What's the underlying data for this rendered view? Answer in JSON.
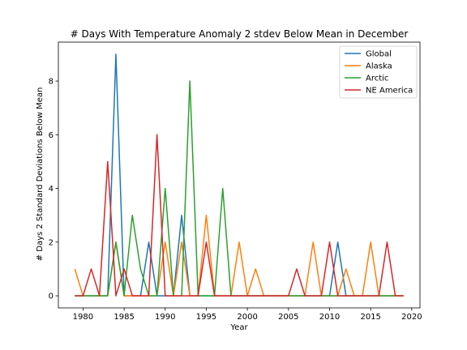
{
  "chart_data": {
    "type": "line",
    "title": "# Days With Temperature Anomaly 2 stdev Below Mean in December",
    "xlabel": "Year",
    "ylabel": "# Days 2 Standard Deviations Below Mean",
    "xlim": [
      1977,
      2021
    ],
    "ylim": [
      -0.45,
      9.45
    ],
    "xticks": [
      1980,
      1985,
      1990,
      1995,
      2000,
      2005,
      2010,
      2015,
      2020
    ],
    "yticks": [
      0,
      2,
      4,
      6,
      8
    ],
    "grid": false,
    "legend_position": "top-right",
    "x": [
      1979,
      1980,
      1981,
      1982,
      1983,
      1984,
      1985,
      1986,
      1987,
      1988,
      1989,
      1990,
      1991,
      1992,
      1993,
      1994,
      1995,
      1996,
      1997,
      1998,
      1999,
      2000,
      2001,
      2002,
      2003,
      2004,
      2005,
      2006,
      2007,
      2008,
      2009,
      2010,
      2011,
      2012,
      2013,
      2014,
      2015,
      2016,
      2017,
      2018,
      2019
    ],
    "series": [
      {
        "name": "Global",
        "color": "#1f77b4",
        "values": [
          0,
          0,
          0,
          0,
          0,
          9,
          0,
          0,
          0,
          2,
          0,
          0,
          0,
          3,
          0,
          0,
          0,
          0,
          0,
          0,
          0,
          0,
          0,
          0,
          0,
          0,
          0,
          0,
          0,
          0,
          0,
          0,
          2,
          0,
          0,
          0,
          0,
          0,
          0,
          0,
          0
        ]
      },
      {
        "name": "Alaska",
        "color": "#ff7f0e",
        "values": [
          1,
          0,
          0,
          0,
          0,
          2,
          0,
          0,
          0,
          0,
          0,
          2,
          0,
          2,
          0,
          0,
          3,
          0,
          0,
          0,
          2,
          0,
          1,
          0,
          0,
          0,
          0,
          0,
          0,
          2,
          0,
          0,
          0,
          1,
          0,
          0,
          2,
          0,
          0,
          0,
          0
        ]
      },
      {
        "name": "Arctic",
        "color": "#2ca02c",
        "values": [
          0,
          0,
          0,
          0,
          0,
          2,
          0,
          3,
          1,
          0,
          0,
          4,
          0,
          0,
          8,
          0,
          0,
          0,
          4,
          0,
          0,
          0,
          0,
          0,
          0,
          0,
          0,
          0,
          0,
          0,
          0,
          0,
          0,
          0,
          0,
          0,
          0,
          0,
          0,
          0,
          0
        ]
      },
      {
        "name": "NE America",
        "color": "#d62728",
        "values": [
          0,
          0,
          1,
          0,
          5,
          0,
          1,
          0,
          0,
          0,
          6,
          0,
          0,
          0,
          0,
          0,
          2,
          0,
          0,
          0,
          0,
          0,
          0,
          0,
          0,
          0,
          0,
          1,
          0,
          0,
          0,
          2,
          0,
          0,
          0,
          0,
          0,
          0,
          2,
          0,
          0
        ]
      }
    ]
  }
}
